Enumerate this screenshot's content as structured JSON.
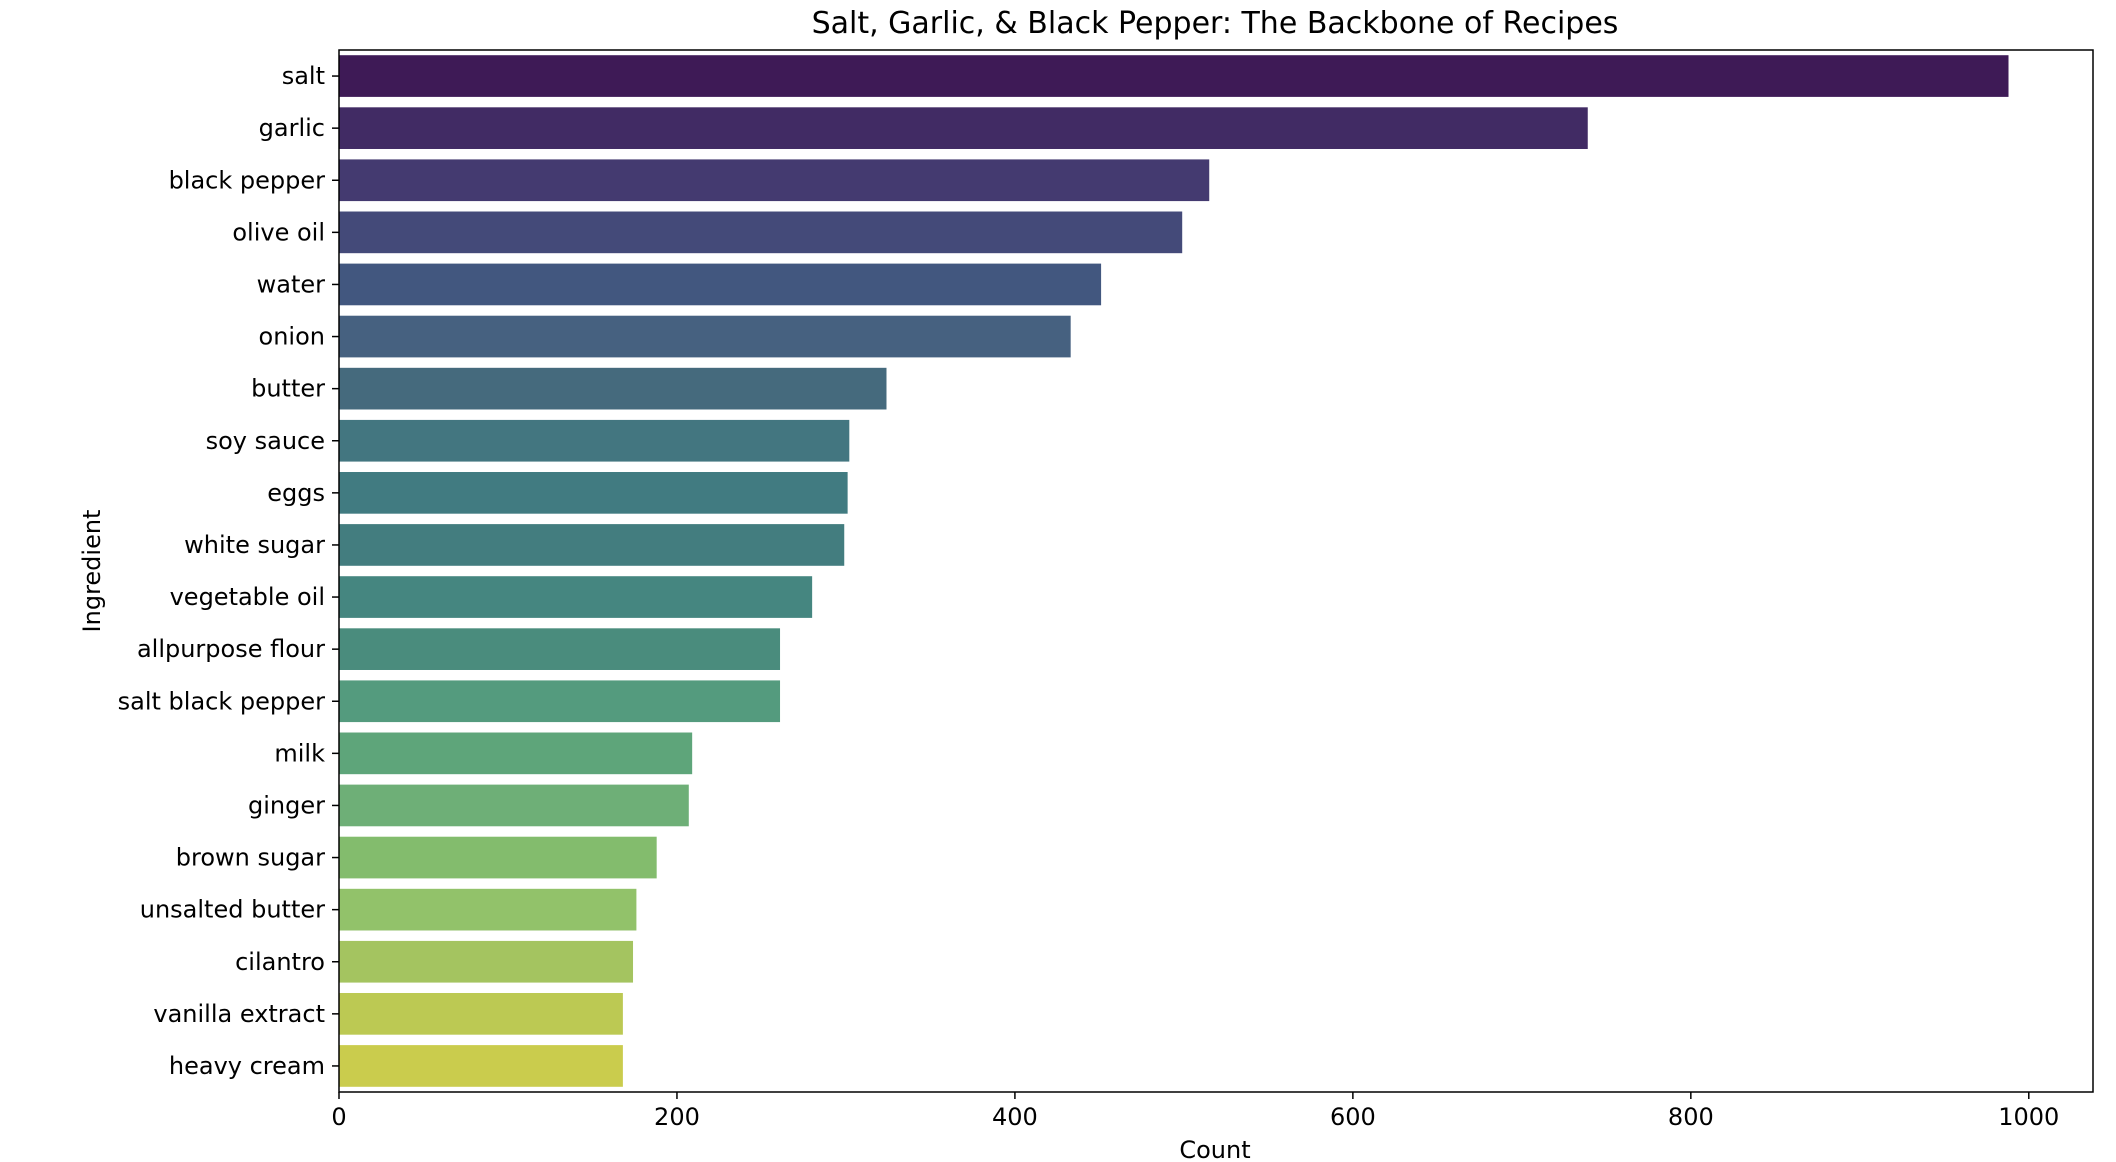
{
  "chart_data": {
    "type": "bar",
    "orientation": "horizontal",
    "title": "Salt, Garlic, & Black Pepper: The Backbone of Recipes",
    "xlabel": "Count",
    "ylabel": "Ingredient",
    "xlim": [
      0,
      1038
    ],
    "x_ticks": [
      0,
      200,
      400,
      600,
      800,
      1000
    ],
    "grid": false,
    "legend": "none",
    "palette": "viridis",
    "categories": [
      "salt",
      "garlic",
      "black pepper",
      "olive oil",
      "water",
      "onion",
      "butter",
      "soy sauce",
      "eggs",
      "white sugar",
      "vegetable oil",
      "allpurpose flour",
      "salt black pepper",
      "milk",
      "ginger",
      "brown sugar",
      "unsalted butter",
      "cilantro",
      "vanilla extract",
      "heavy cream"
    ],
    "values": [
      988,
      739,
      515,
      499,
      451,
      433,
      324,
      302,
      301,
      299,
      280,
      261,
      261,
      209,
      207,
      188,
      176,
      174,
      168,
      168
    ],
    "colors": [
      "#3e1a56",
      "#412b64",
      "#443a70",
      "#444a79",
      "#42577f",
      "#466180",
      "#456a7d",
      "#437680",
      "#417b81",
      "#437d7f",
      "#458680",
      "#4a8c7d",
      "#549b7e",
      "#5ea57a",
      "#6eaf77",
      "#83bc6d",
      "#92c26a",
      "#a4c460",
      "#bcc953",
      "#cacc4d"
    ]
  }
}
